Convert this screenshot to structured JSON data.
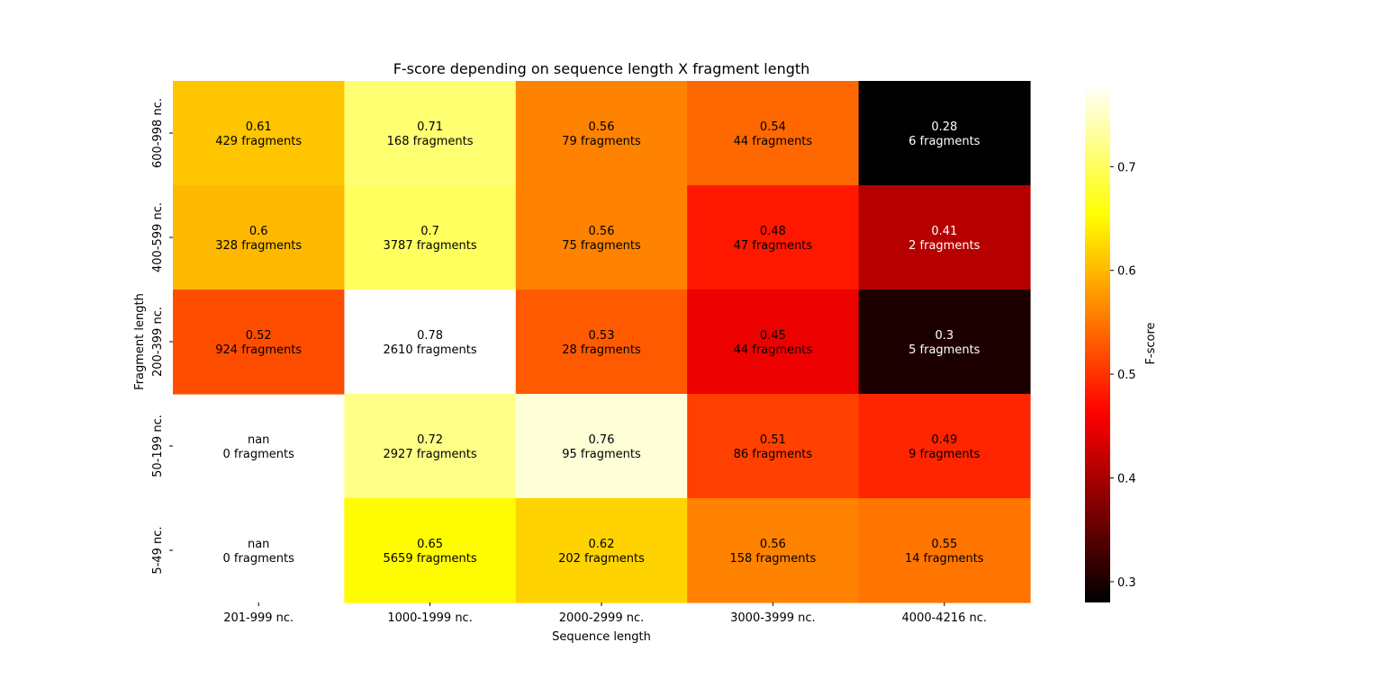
{
  "chart_data": {
    "type": "heatmap",
    "title": "F-score depending on sequence length X fragment length",
    "xlabel": "Sequence length",
    "ylabel": "Fragment length",
    "x_categories": [
      "201-999 nc.",
      "1000-1999 nc.",
      "2000-2999 nc.",
      "3000-3999 nc.",
      "4000-4216 nc."
    ],
    "y_categories": [
      "600-998 nc.",
      "400-599 nc.",
      "200-399 nc.",
      "50-199 nc.",
      "5-49 nc."
    ],
    "values": [
      [
        0.61,
        0.71,
        0.56,
        0.54,
        0.28
      ],
      [
        0.6,
        0.7,
        0.56,
        0.48,
        0.41
      ],
      [
        0.52,
        0.78,
        0.53,
        0.45,
        0.3
      ],
      [
        null,
        0.72,
        0.76,
        0.51,
        0.49
      ],
      [
        null,
        0.65,
        0.62,
        0.56,
        0.55
      ]
    ],
    "cell_labels": [
      [
        [
          "0.61",
          "429 fragments"
        ],
        [
          "0.71",
          "168 fragments"
        ],
        [
          "0.56",
          "79 fragments"
        ],
        [
          "0.54",
          "44 fragments"
        ],
        [
          "0.28",
          "6 fragments"
        ]
      ],
      [
        [
          "0.6",
          "328 fragments"
        ],
        [
          "0.7",
          "3787 fragments"
        ],
        [
          "0.56",
          "75 fragments"
        ],
        [
          "0.48",
          "47 fragments"
        ],
        [
          "0.41",
          "2 fragments"
        ]
      ],
      [
        [
          "0.52",
          "924 fragments"
        ],
        [
          "0.78",
          "2610 fragments"
        ],
        [
          "0.53",
          "28 fragments"
        ],
        [
          "0.45",
          "44 fragments"
        ],
        [
          "0.3",
          "5 fragments"
        ]
      ],
      [
        [
          "nan",
          "0 fragments"
        ],
        [
          "0.72",
          "2927 fragments"
        ],
        [
          "0.76",
          "95 fragments"
        ],
        [
          "0.51",
          "86 fragments"
        ],
        [
          "0.49",
          "9 fragments"
        ]
      ],
      [
        [
          "nan",
          "0 fragments"
        ],
        [
          "0.65",
          "5659 fragments"
        ],
        [
          "0.62",
          "202 fragments"
        ],
        [
          "0.56",
          "158 fragments"
        ],
        [
          "0.55",
          "14 fragments"
        ]
      ]
    ],
    "colormap": "hot",
    "colorbar": {
      "label": "F-score",
      "range": [
        0.28,
        0.78
      ],
      "ticks": [
        0.3,
        0.4,
        0.5,
        0.6,
        0.7
      ],
      "tick_labels": [
        "0.3",
        "0.4",
        "0.5",
        "0.6",
        "0.7"
      ]
    },
    "grid": false
  }
}
